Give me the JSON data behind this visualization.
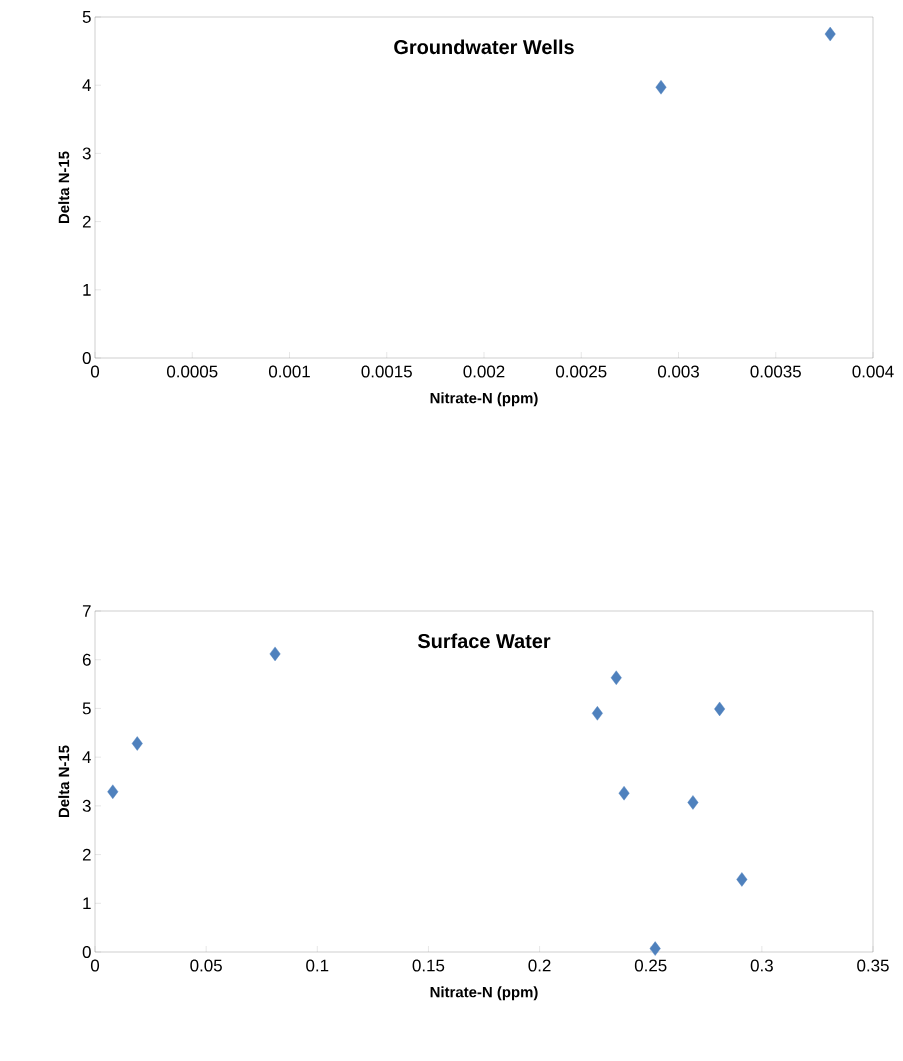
{
  "chart_data": [
    {
      "type": "scatter",
      "title": "Groundwater Wells",
      "xlabel": "Nitrate-N (ppm)",
      "ylabel": "Delta N-15",
      "color": "#4f81bd",
      "marker": "diamond",
      "grid": false,
      "x": [
        0.00291,
        0.00378
      ],
      "values": [
        3.97,
        4.75
      ],
      "xlim": [
        0,
        0.004
      ],
      "ylim": [
        0,
        5
      ],
      "xticks": [
        0,
        0.0005,
        0.001,
        0.0015,
        0.002,
        0.0025,
        0.003,
        0.0035,
        0.004
      ],
      "yticks": [
        0,
        1,
        2,
        3,
        4,
        5
      ]
    },
    {
      "type": "scatter",
      "title": "Surface Water",
      "xlabel": "Nitrate-N (ppm)",
      "ylabel": "Delta N-15",
      "color": "#4f81bd",
      "marker": "diamond",
      "grid": false,
      "x": [
        0.008,
        0.019,
        0.081,
        0.2345,
        0.226,
        0.281,
        0.238,
        0.269,
        0.291,
        0.252
      ],
      "values": [
        3.29,
        4.28,
        6.12,
        5.63,
        4.9,
        4.99,
        3.26,
        3.07,
        1.49,
        0.07
      ],
      "xlim": [
        0,
        0.35
      ],
      "ylim": [
        0,
        7
      ],
      "xticks": [
        0,
        0.05,
        0.1,
        0.15,
        0.2,
        0.25,
        0.3,
        0.35
      ],
      "yticks": [
        0,
        1,
        2,
        3,
        4,
        5,
        6,
        7
      ]
    }
  ]
}
